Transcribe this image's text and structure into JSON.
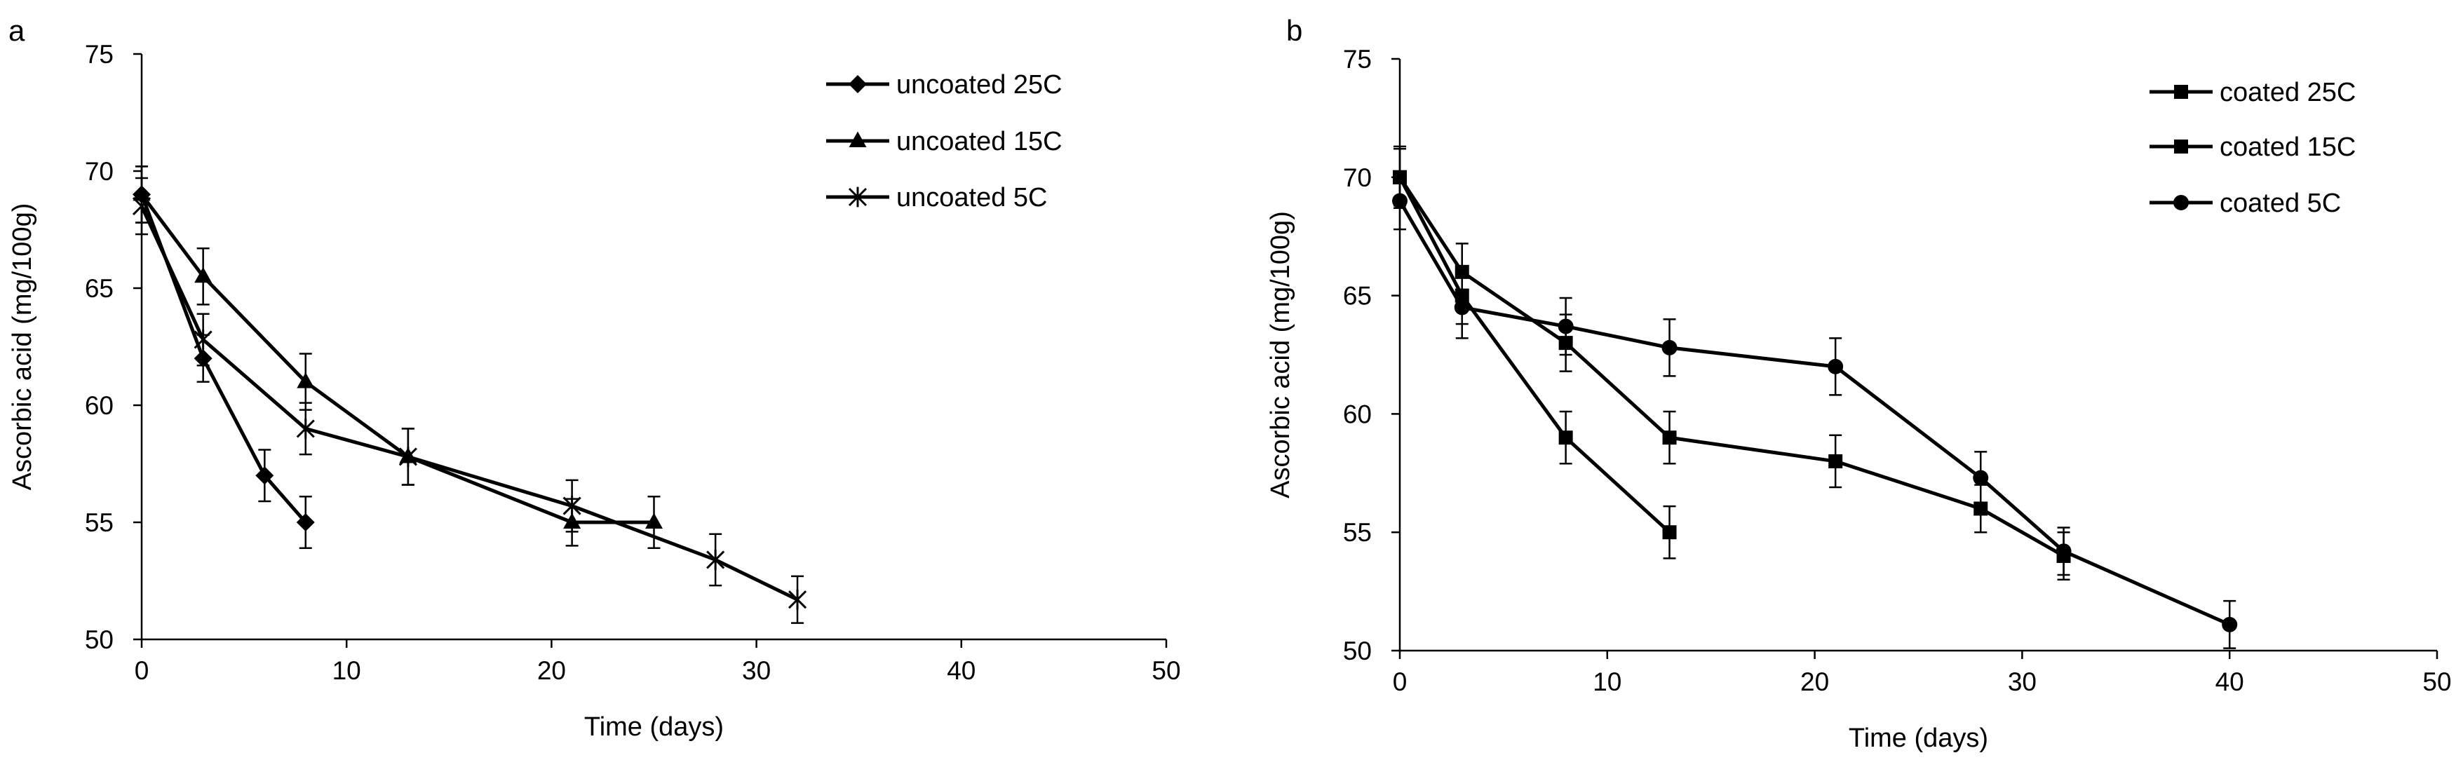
{
  "chart_data": [
    {
      "type": "line",
      "panel_label": "a",
      "title": "",
      "xlabel": "Time (days)",
      "ylabel": "Ascorbic acid (mg/100g)",
      "xlim": [
        0,
        50
      ],
      "ylim": [
        50,
        75
      ],
      "xticks": [
        0,
        10,
        20,
        30,
        40,
        50
      ],
      "yticks": [
        50,
        55,
        60,
        65,
        70,
        75
      ],
      "grid": false,
      "legend_position": "top-right",
      "series": [
        {
          "name": "uncoated 25C",
          "marker": "diamond",
          "x": [
            0,
            3,
            6,
            8
          ],
          "y": [
            69,
            62,
            57,
            55
          ],
          "err": [
            1.2,
            1.0,
            1.1,
            1.1
          ]
        },
        {
          "name": "uncoated 15C",
          "marker": "triangle",
          "x": [
            0,
            3,
            8,
            13,
            21,
            25
          ],
          "y": [
            69,
            65.5,
            61,
            57.8,
            55,
            55
          ],
          "err": [
            1.2,
            1.2,
            1.2,
            1.2,
            1.0,
            1.1
          ]
        },
        {
          "name": "uncoated 5C",
          "marker": "asterisk",
          "x": [
            0,
            3,
            8,
            13,
            21,
            28,
            32
          ],
          "y": [
            68.5,
            62.8,
            59,
            57.8,
            55.7,
            53.4,
            51.7
          ],
          "err": [
            1.2,
            1.1,
            1.1,
            1.2,
            1.1,
            1.1,
            1.0
          ]
        }
      ]
    },
    {
      "type": "line",
      "panel_label": "b",
      "title": "",
      "xlabel": "Time (days)",
      "ylabel": "Ascorbic acid (mg/100g)",
      "xlim": [
        0,
        50
      ],
      "ylim": [
        50,
        75
      ],
      "xticks": [
        0,
        10,
        20,
        30,
        40,
        50
      ],
      "yticks": [
        50,
        55,
        60,
        65,
        70,
        75
      ],
      "grid": false,
      "legend_position": "top-right",
      "series": [
        {
          "name": "coated 25C",
          "marker": "square",
          "x": [
            0,
            3,
            8,
            13
          ],
          "y": [
            70,
            65,
            59,
            55
          ],
          "err": [
            1.2,
            1.2,
            1.1,
            1.1
          ]
        },
        {
          "name": "coated 15C",
          "marker": "square",
          "x": [
            0,
            3,
            8,
            13,
            21,
            28,
            32
          ],
          "y": [
            70,
            66,
            63,
            59,
            58,
            56,
            54
          ],
          "err": [
            1.3,
            1.2,
            1.2,
            1.1,
            1.1,
            1.0,
            1.0
          ]
        },
        {
          "name": "coated 5C",
          "marker": "circle",
          "x": [
            0,
            3,
            8,
            13,
            21,
            28,
            32,
            40
          ],
          "y": [
            69,
            64.5,
            63.7,
            62.8,
            62,
            57.3,
            54.2,
            51.1
          ],
          "err": [
            1.2,
            1.3,
            1.2,
            1.2,
            1.2,
            1.1,
            1.0,
            1.0
          ]
        }
      ]
    }
  ]
}
